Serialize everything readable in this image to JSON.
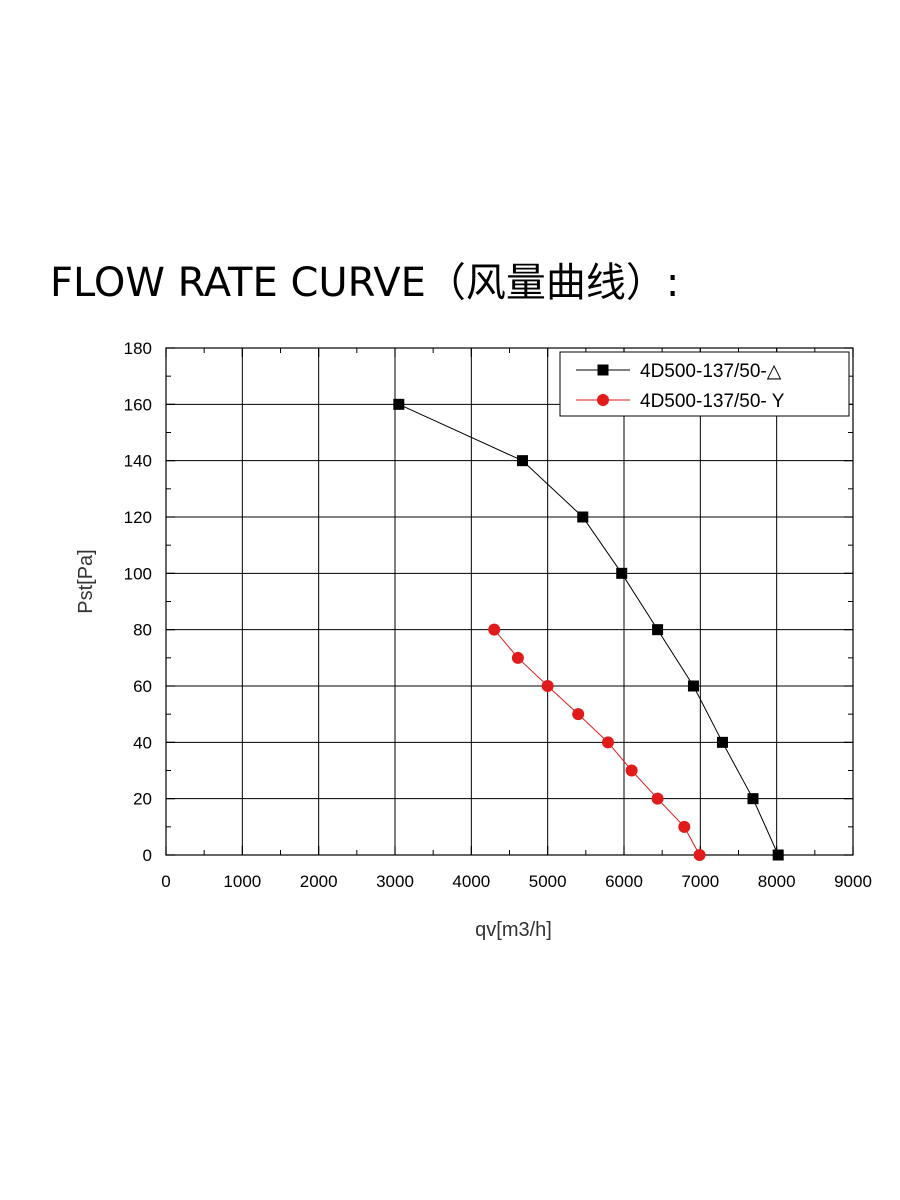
{
  "page": {
    "title": "FLOW RATE CURVE（风量曲线）:"
  },
  "chart_data": {
    "type": "line",
    "title": "",
    "xlabel": "qv[m3/h]",
    "ylabel": "Pst[Pa]",
    "xlim": [
      0,
      9000
    ],
    "ylim": [
      0,
      180
    ],
    "xticks": [
      0,
      1000,
      2000,
      3000,
      4000,
      5000,
      6000,
      7000,
      8000,
      9000
    ],
    "yticks": [
      0,
      20,
      40,
      60,
      80,
      100,
      120,
      140,
      160,
      180
    ],
    "grid": true,
    "legend_position": "top-right",
    "series": [
      {
        "name": "4D500-137/50-△",
        "color": "#000000",
        "marker": "square",
        "x": [
          3050,
          4670,
          5460,
          5970,
          6440,
          6910,
          7290,
          7690,
          8020
        ],
        "y": [
          160,
          140,
          120,
          100,
          80,
          60,
          40,
          20,
          0
        ]
      },
      {
        "name": "4D500-137/50- Y",
        "color": "#e11b1b",
        "marker": "circle",
        "x": [
          4300,
          4610,
          5000,
          5400,
          5790,
          6100,
          6440,
          6790,
          6990
        ],
        "y": [
          80,
          70,
          60,
          50,
          40,
          30,
          20,
          10,
          0
        ]
      }
    ]
  }
}
